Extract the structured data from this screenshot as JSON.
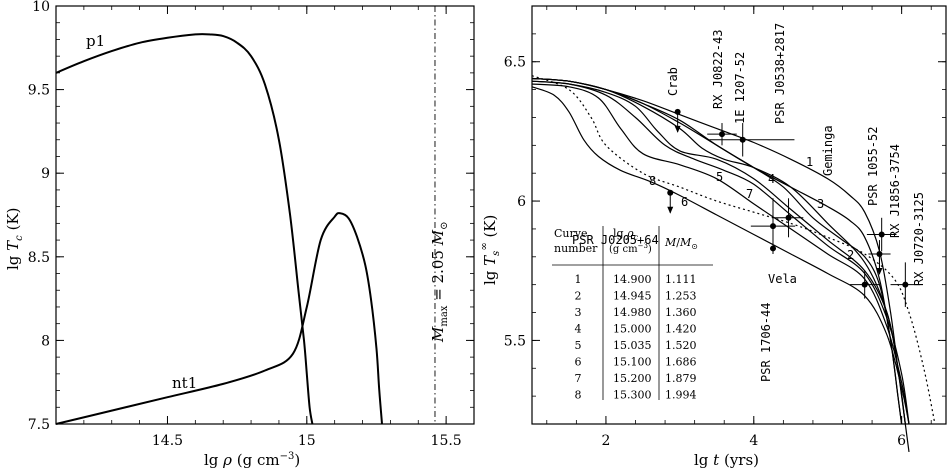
{
  "chart_data": [
    {
      "type": "line",
      "xlabel": "lg ρ  (g cm⁻³)",
      "ylabel": "lg T_c  (K)",
      "xlim": [
        14.1,
        15.6
      ],
      "ylim": [
        7.5,
        10.0
      ],
      "xticks": [
        14.5,
        15,
        15.5
      ],
      "xtick_labels": [
        "14.5",
        "15",
        "15.5"
      ],
      "yticks": [
        7.5,
        8,
        8.5,
        9,
        9.5,
        10
      ],
      "ytick_labels": [
        "7.5",
        "8",
        "8.5",
        "9",
        "9.5",
        "10"
      ],
      "series": [
        {
          "name": "p1",
          "x": [
            14.1,
            14.2,
            14.3,
            14.4,
            14.5,
            14.6,
            14.65,
            14.7,
            14.75,
            14.8,
            14.85,
            14.9,
            14.94,
            14.97,
            14.99,
            15.0,
            15.01,
            15.02
          ],
          "y": [
            9.6,
            9.67,
            9.73,
            9.78,
            9.81,
            9.83,
            9.83,
            9.82,
            9.78,
            9.7,
            9.53,
            9.2,
            8.75,
            8.3,
            8.0,
            7.8,
            7.6,
            7.5
          ]
        },
        {
          "name": "nt1",
          "x": [
            14.1,
            14.3,
            14.5,
            14.7,
            14.85,
            14.95,
            15.0,
            15.05,
            15.1,
            15.12,
            15.15,
            15.18,
            15.21,
            15.23,
            15.25,
            15.26,
            15.27
          ],
          "y": [
            7.5,
            7.58,
            7.66,
            7.74,
            7.82,
            7.92,
            8.2,
            8.6,
            8.74,
            8.76,
            8.73,
            8.62,
            8.45,
            8.25,
            7.95,
            7.7,
            7.5
          ]
        }
      ],
      "annotations": [
        "p1",
        "nt1",
        "M_max = 2.05 M_⊙"
      ],
      "vline": {
        "x": 15.46,
        "style": "dash-dot",
        "label": "M_max = 2.05 M_⊙"
      }
    },
    {
      "type": "line",
      "xlabel": "lg t   (yrs)",
      "ylabel": "lg T_s^∞  (K)",
      "xlim": [
        1.0,
        6.6
      ],
      "ylim": [
        5.2,
        6.7
      ],
      "xticks": [
        2,
        4,
        6
      ],
      "xtick_labels": [
        "2",
        "4",
        "6"
      ],
      "yticks": [
        5.5,
        6,
        6.5
      ],
      "ytick_labels": [
        "5.5",
        "6",
        "6.5"
      ],
      "curves": [
        {
          "label": "1",
          "x": [
            1.0,
            1.5,
            2.0,
            2.5,
            3.0,
            3.5,
            4.0,
            4.5,
            5.0,
            5.3,
            5.5,
            5.7,
            5.85,
            5.95,
            6.05,
            6.1
          ],
          "y": [
            6.44,
            6.43,
            6.4,
            6.36,
            6.31,
            6.26,
            6.21,
            6.15,
            6.08,
            6.02,
            5.96,
            5.82,
            5.6,
            5.4,
            5.2,
            5.1
          ]
        },
        {
          "label": "2",
          "x": [
            1.0,
            1.5,
            2.0,
            2.5,
            3.0,
            3.5,
            4.0,
            4.5,
            5.0,
            5.3,
            5.5,
            5.7,
            5.85,
            5.95,
            6.0
          ],
          "y": [
            6.44,
            6.43,
            6.4,
            6.35,
            6.28,
            6.2,
            6.12,
            6.05,
            5.98,
            5.93,
            5.87,
            5.72,
            5.5,
            5.3,
            5.2
          ]
        },
        {
          "label": "3",
          "x": [
            1.0,
            1.5,
            2.0,
            2.5,
            3.0,
            3.5,
            4.0,
            4.4,
            4.8,
            5.2,
            5.5,
            5.7,
            5.85,
            5.95,
            6.0
          ],
          "y": [
            6.44,
            6.43,
            6.4,
            6.35,
            6.29,
            6.2,
            6.12,
            6.05,
            5.94,
            5.86,
            5.8,
            5.7,
            5.5,
            5.3,
            5.2
          ]
        },
        {
          "label": "4",
          "x": [
            1.0,
            1.5,
            2.0,
            2.5,
            3.0,
            3.3,
            3.6,
            4.0,
            4.5,
            5.0,
            5.5,
            5.8,
            5.95,
            6.05
          ],
          "y": [
            6.44,
            6.43,
            6.4,
            6.34,
            6.26,
            6.19,
            6.15,
            6.12,
            6.05,
            5.92,
            5.78,
            5.6,
            5.4,
            5.2
          ]
        },
        {
          "label": "5",
          "x": [
            1.0,
            1.5,
            2.0,
            2.4,
            2.7,
            3.0,
            3.5,
            4.0,
            4.5,
            5.0,
            5.5,
            5.8,
            5.95,
            6.05
          ],
          "y": [
            6.43,
            6.42,
            6.39,
            6.34,
            6.25,
            6.18,
            6.15,
            6.08,
            5.97,
            5.86,
            5.75,
            5.6,
            5.4,
            5.2
          ]
        },
        {
          "label": "6",
          "x": [
            1.0,
            1.5,
            1.9,
            2.2,
            2.5,
            3.0,
            3.5,
            4.0,
            4.5,
            5.0,
            5.5,
            5.8,
            6.0,
            6.1
          ],
          "y": [
            6.42,
            6.41,
            6.37,
            6.26,
            6.17,
            6.13,
            6.08,
            5.99,
            5.9,
            5.81,
            5.72,
            5.55,
            5.35,
            5.2
          ]
        },
        {
          "label": "7",
          "x": [
            1.0,
            1.5,
            2.0,
            2.4,
            2.8,
            3.2,
            3.6,
            4.0,
            4.5,
            5.0,
            5.5,
            5.8,
            6.0,
            6.1
          ],
          "y": [
            6.43,
            6.42,
            6.38,
            6.3,
            6.2,
            6.15,
            6.11,
            6.06,
            5.95,
            5.84,
            5.74,
            5.58,
            5.38,
            5.2
          ]
        },
        {
          "label": "8",
          "x": [
            1.0,
            1.3,
            1.5,
            1.7,
            1.9,
            2.2,
            2.6,
            3.0,
            3.5,
            4.0,
            4.5,
            5.0,
            5.5,
            5.8,
            6.0,
            6.1
          ],
          "y": [
            6.41,
            6.38,
            6.32,
            6.22,
            6.16,
            6.11,
            6.07,
            6.02,
            5.95,
            5.88,
            5.81,
            5.74,
            5.66,
            5.52,
            5.33,
            5.2
          ]
        },
        {
          "label": "",
          "style": "dotted",
          "x": [
            1.0,
            1.5,
            1.8,
            2.0,
            2.5,
            3.0,
            3.5,
            4.0,
            4.5,
            5.0,
            5.5,
            5.9,
            6.1,
            6.3,
            6.45
          ],
          "y": [
            6.45,
            6.4,
            6.3,
            6.2,
            6.1,
            6.05,
            6.0,
            5.96,
            5.92,
            5.87,
            5.81,
            5.72,
            5.6,
            5.4,
            5.2
          ]
        }
      ],
      "observations": [
        {
          "name": "Crab",
          "x": 2.97,
          "y": 6.32,
          "xerr": [
            0,
            0
          ],
          "yerr": [
            0,
            0
          ],
          "upper_limit": true
        },
        {
          "name": "RX J0822-43",
          "x": 3.57,
          "y": 6.24,
          "xerr": [
            0.2,
            0.2
          ],
          "yerr": [
            0.04,
            0.04
          ],
          "upper_limit": false
        },
        {
          "name": "1E 1207-52",
          "x": 3.85,
          "y": 6.22,
          "xerr": [
            0.45,
            0.7
          ],
          "yerr": [
            0.06,
            0.06
          ],
          "upper_limit": false
        },
        {
          "name": "PSR J0538+2817",
          "x": 4.47,
          "y": 5.94,
          "xerr": [
            0.2,
            0.2
          ],
          "yerr": [
            0.07,
            0.07
          ],
          "upper_limit": false
        },
        {
          "name": "PSR J0205+64",
          "x": 2.87,
          "y": 6.03,
          "xerr": [
            0,
            0
          ],
          "yerr": [
            0,
            0
          ],
          "upper_limit": true
        },
        {
          "name": "Vela",
          "x": 4.26,
          "y": 5.83,
          "xerr": [
            0.0,
            0.0
          ],
          "yerr": [
            0.02,
            0.02
          ],
          "upper_limit": false
        },
        {
          "name": "PSR 1706-44",
          "x": 4.26,
          "y": 5.91,
          "xerr": [
            0.3,
            0.3
          ],
          "yerr": [
            0.1,
            0.1
          ],
          "upper_limit": false
        },
        {
          "name": "Geminga",
          "x": 5.5,
          "y": 5.7,
          "xerr": [
            0.2,
            0.2
          ],
          "yerr": [
            0.05,
            0.05
          ],
          "upper_limit": false
        },
        {
          "name": "PSR 1055-52",
          "x": 5.73,
          "y": 5.88,
          "xerr": [
            0.2,
            0.2
          ],
          "yerr": [
            0.06,
            0.06
          ],
          "upper_limit": false
        },
        {
          "name": "RX J1856-3754",
          "x": 5.7,
          "y": 5.81,
          "xerr": [
            0.15,
            0.15
          ],
          "yerr": [
            0.05,
            0.05
          ],
          "upper_limit": true
        },
        {
          "name": "RX J0720-3125",
          "x": 6.05,
          "y": 5.7,
          "xerr": [
            0.2,
            0.2
          ],
          "yerr": [
            0.08,
            0.08
          ],
          "upper_limit": false
        }
      ],
      "table": {
        "headers": [
          "Curve number",
          "lg ρ_c (g cm⁻³)",
          "M/M_⊙"
        ],
        "rows": [
          [
            "1",
            "14.900",
            "1.111"
          ],
          [
            "2",
            "14.945",
            "1.253"
          ],
          [
            "3",
            "14.980",
            "1.360"
          ],
          [
            "4",
            "15.000",
            "1.420"
          ],
          [
            "5",
            "15.035",
            "1.520"
          ],
          [
            "6",
            "15.100",
            "1.686"
          ],
          [
            "7",
            "15.200",
            "1.879"
          ],
          [
            "8",
            "15.300",
            "1.994"
          ]
        ]
      }
    }
  ]
}
